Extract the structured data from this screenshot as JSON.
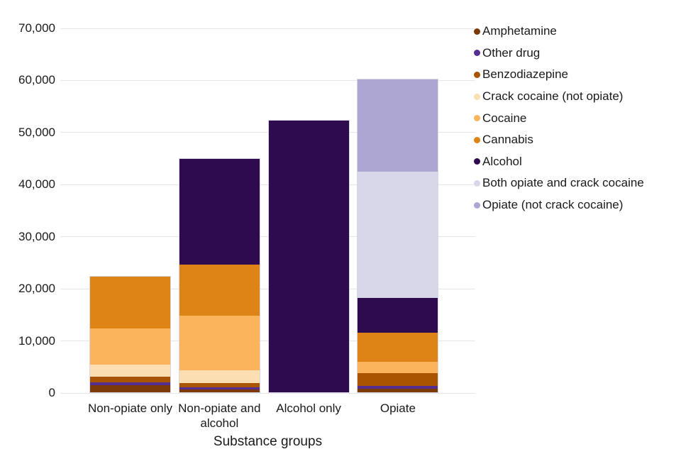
{
  "chart_data": {
    "type": "bar",
    "stacked": true,
    "title": "",
    "xlabel": "Substance groups",
    "ylabel": "",
    "ylim": [
      0,
      70000
    ],
    "yticks": [
      0,
      10000,
      20000,
      30000,
      40000,
      50000,
      60000,
      70000
    ],
    "grid": true,
    "legend_position": "right",
    "categories": [
      "Non-opiate only",
      "Non-opiate and alcohol",
      "Alcohol only",
      "Opiate"
    ],
    "series": [
      {
        "name": "Amphetamine",
        "color": "#7b3a08",
        "values": [
          1350,
          550,
          0,
          650
        ]
      },
      {
        "name": "Other drug",
        "color": "#542e91",
        "values": [
          550,
          450,
          0,
          600
        ]
      },
      {
        "name": "Benzodiazepine",
        "color": "#a85400",
        "values": [
          1100,
          800,
          0,
          2500
        ]
      },
      {
        "name": "Crack cocaine (not opiate)",
        "color": "#fbdfb2",
        "values": [
          2350,
          2450,
          0,
          0
        ]
      },
      {
        "name": "Cocaine",
        "color": "#fbb45c",
        "values": [
          7100,
          10550,
          0,
          2150
        ]
      },
      {
        "name": "Cannabis",
        "color": "#de8315",
        "values": [
          10050,
          9900,
          0,
          5550
        ]
      },
      {
        "name": "Alcohol",
        "color": "#2e0a4f",
        "values": [
          0,
          20400,
          52400,
          6700
        ]
      },
      {
        "name": "Both opiate and crack cocaine",
        "color": "#d8d7e9",
        "values": [
          0,
          0,
          0,
          24400
        ]
      },
      {
        "name": "Opiate (not crack cocaine)",
        "color": "#ada6d2",
        "values": [
          0,
          0,
          0,
          17750
        ]
      }
    ],
    "totals": [
      22500,
      45100,
      52400,
      60300
    ]
  }
}
